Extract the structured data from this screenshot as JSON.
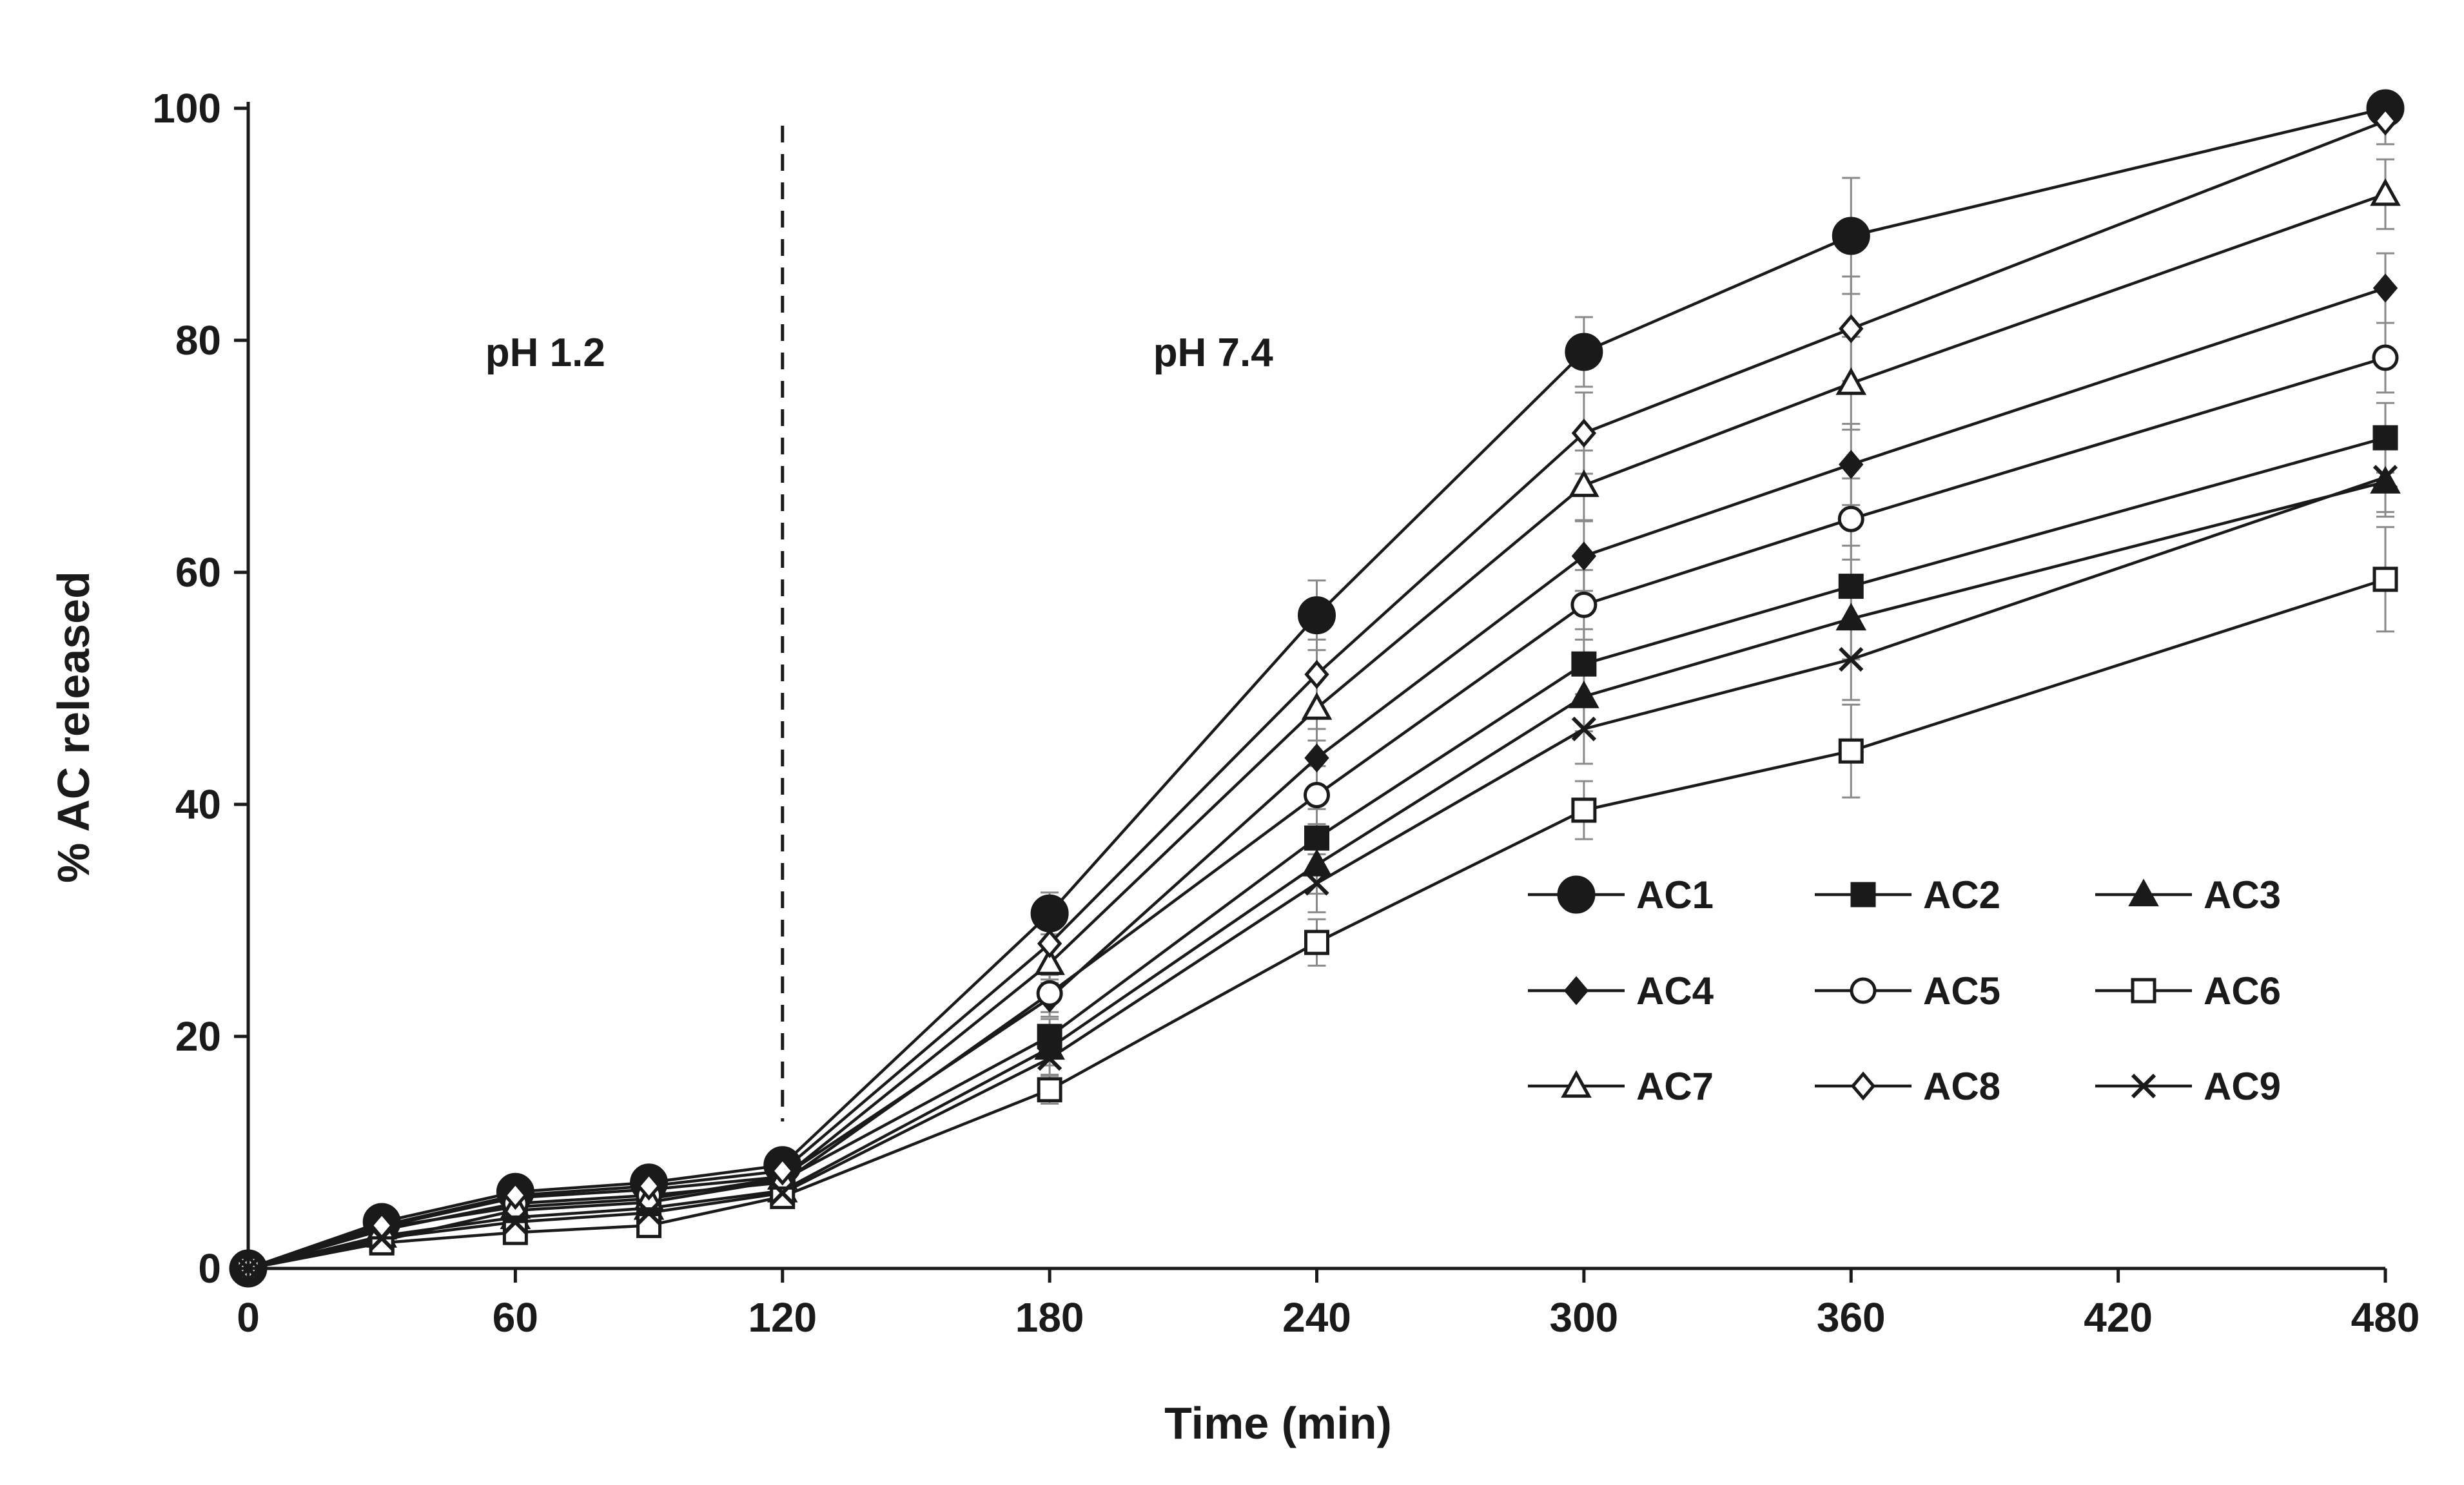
{
  "chart_data": {
    "type": "line",
    "title": "",
    "xlabel": "Time (min)",
    "ylabel": "% AC released",
    "xlim": [
      0,
      480
    ],
    "ylim": [
      0,
      100
    ],
    "xticks": [
      0,
      60,
      120,
      180,
      240,
      300,
      360,
      420,
      480
    ],
    "yticks": [
      0,
      20,
      40,
      60,
      80,
      100
    ],
    "grid": false,
    "legend_position": "center-right",
    "annotations": [
      {
        "text": "pH 1.2",
        "x": 45,
        "y": 79
      },
      {
        "text": "pH 7.4",
        "x": 195,
        "y": 79
      }
    ],
    "phase_divider_x": 120,
    "x": [
      0,
      30,
      60,
      90,
      120,
      180,
      240,
      300,
      360,
      480
    ],
    "series": [
      {
        "name": "AC1",
        "marker": "circle-filled-large",
        "values": [
          0,
          4.0,
          6.6,
          7.4,
          8.9,
          30.6,
          56.3,
          79.0,
          89.0,
          100.0
        ],
        "errors": [
          0,
          0.5,
          0.6,
          0.6,
          0.8,
          1.8,
          3.0,
          3.0,
          5.0,
          1.0
        ]
      },
      {
        "name": "AC2",
        "marker": "square-filled",
        "values": [
          0,
          2.4,
          5.0,
          5.7,
          7.6,
          20.0,
          37.1,
          52.1,
          58.8,
          71.6
        ],
        "errors": [
          0,
          0.4,
          0.5,
          0.5,
          0.6,
          1.5,
          2.5,
          3.0,
          3.5,
          3.0
        ]
      },
      {
        "name": "AC3",
        "marker": "triangle-filled",
        "values": [
          0,
          2.8,
          4.4,
          5.2,
          6.7,
          19.0,
          34.8,
          49.3,
          56.0,
          67.8
        ],
        "errors": [
          0,
          0.4,
          0.5,
          0.5,
          0.6,
          1.5,
          2.5,
          3.0,
          3.5,
          3.0
        ]
      },
      {
        "name": "AC4",
        "marker": "diamond-filled",
        "values": [
          0,
          3.6,
          6.1,
          6.8,
          7.9,
          23.3,
          44.0,
          61.4,
          69.3,
          84.5
        ],
        "errors": [
          0,
          0.5,
          0.5,
          0.5,
          0.6,
          1.6,
          2.5,
          3.0,
          3.5,
          3.0
        ]
      },
      {
        "name": "AC5",
        "marker": "circle-open",
        "values": [
          0,
          3.3,
          5.6,
          6.3,
          7.4,
          23.7,
          40.8,
          57.2,
          64.6,
          78.5
        ],
        "errors": [
          0,
          0.5,
          0.5,
          0.5,
          0.6,
          1.6,
          2.5,
          3.0,
          3.5,
          3.0
        ]
      },
      {
        "name": "AC6",
        "marker": "square-open",
        "values": [
          0,
          2.2,
          3.1,
          3.7,
          6.2,
          15.4,
          28.1,
          39.5,
          44.6,
          59.4
        ],
        "errors": [
          0,
          0.4,
          0.4,
          0.4,
          0.5,
          1.2,
          2.0,
          2.5,
          4.0,
          4.5
        ]
      },
      {
        "name": "AC7",
        "marker": "triangle-open",
        "values": [
          0,
          3.5,
          5.3,
          6.0,
          7.8,
          26.3,
          48.3,
          67.5,
          76.3,
          92.6
        ],
        "errors": [
          0,
          0.5,
          0.5,
          0.5,
          0.6,
          1.7,
          2.8,
          3.0,
          4.0,
          3.0
        ]
      },
      {
        "name": "AC8",
        "marker": "diamond-open",
        "values": [
          0,
          3.7,
          6.3,
          7.1,
          8.4,
          28.0,
          51.2,
          72.0,
          81.0,
          98.9
        ],
        "errors": [
          0,
          0.5,
          0.6,
          0.6,
          0.7,
          1.8,
          3.0,
          3.5,
          4.5,
          2.0
        ]
      },
      {
        "name": "AC9",
        "marker": "x",
        "values": [
          0,
          2.6,
          4.0,
          4.8,
          6.5,
          18.1,
          33.2,
          46.5,
          52.5,
          68.2
        ],
        "errors": [
          0,
          0.4,
          0.4,
          0.4,
          0.5,
          1.4,
          2.5,
          3.0,
          3.5,
          3.0
        ]
      }
    ]
  }
}
